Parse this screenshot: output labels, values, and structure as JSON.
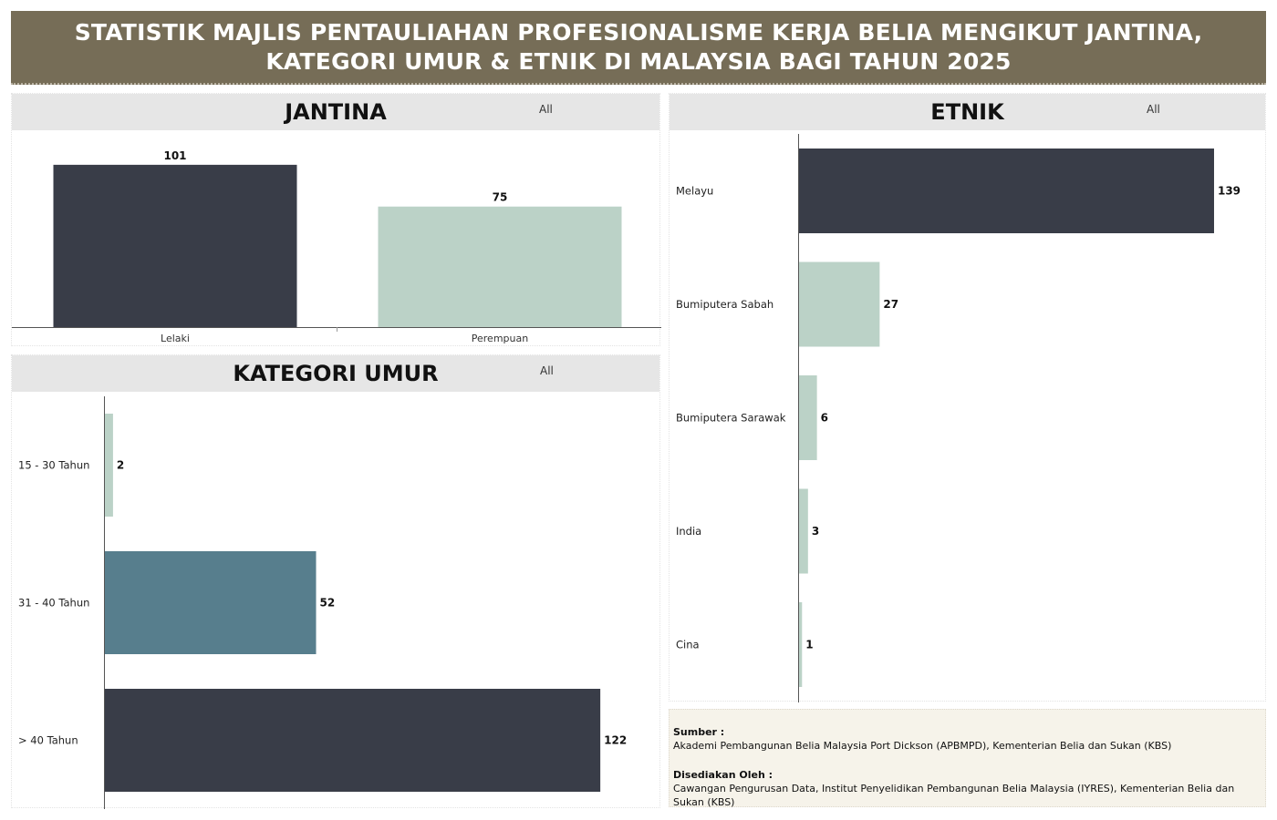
{
  "header": {
    "title_line1": "STATISTIK MAJLIS PENTAULIAHAN PROFESIONALISME KERJA BELIA MENGIKUT JANTINA,",
    "title_line2": "KATEGORI UMUR & ETNIK DI MALAYSIA BAGI TAHUN 2025"
  },
  "panels": {
    "jantina": {
      "title": "JANTINA",
      "filter": "All"
    },
    "umur": {
      "title": "KATEGORI UMUR",
      "filter": "All"
    },
    "etnik": {
      "title": "ETNIK",
      "filter": "All"
    }
  },
  "colors": {
    "header_bg": "#766d57",
    "dark": "#393d48",
    "light_green": "#bbd2c7",
    "teal": "#577e8d"
  },
  "chart_data": [
    {
      "id": "jantina",
      "type": "bar",
      "orientation": "vertical",
      "categories": [
        "Lelaki",
        "Perempuan"
      ],
      "values": [
        101,
        75
      ],
      "colors": [
        "#393d48",
        "#bbd2c7"
      ],
      "ylim": [
        0,
        110
      ]
    },
    {
      "id": "umur",
      "type": "bar",
      "orientation": "horizontal",
      "categories": [
        "15 - 30 Tahun",
        "31 - 40 Tahun",
        "> 40 Tahun"
      ],
      "values": [
        2,
        52,
        122
      ],
      "colors": [
        "#bbd2c7",
        "#577e8d",
        "#393d48"
      ],
      "xlim": [
        0,
        135
      ]
    },
    {
      "id": "etnik",
      "type": "bar",
      "orientation": "horizontal",
      "categories": [
        "Melayu",
        "Bumiputera Sabah",
        "Bumiputera Sarawak",
        "India",
        "Cina"
      ],
      "values": [
        139,
        27,
        6,
        3,
        1
      ],
      "colors": [
        "#393d48",
        "#bbd2c7",
        "#bbd2c7",
        "#bbd2c7",
        "#bbd2c7"
      ],
      "xlim": [
        0,
        150
      ]
    }
  ],
  "source": {
    "sumber_label": "Sumber :",
    "sumber_text": "Akademi Pembangunan Belia Malaysia Port Dickson (APBMPD), Kementerian Belia dan Sukan (KBS)",
    "disediakan_label": "Disediakan Oleh :",
    "disediakan_text": "Cawangan Pengurusan Data, Institut Penyelidikan Pembangunan Belia Malaysia (IYRES), Kementerian Belia dan Sukan (KBS)"
  }
}
